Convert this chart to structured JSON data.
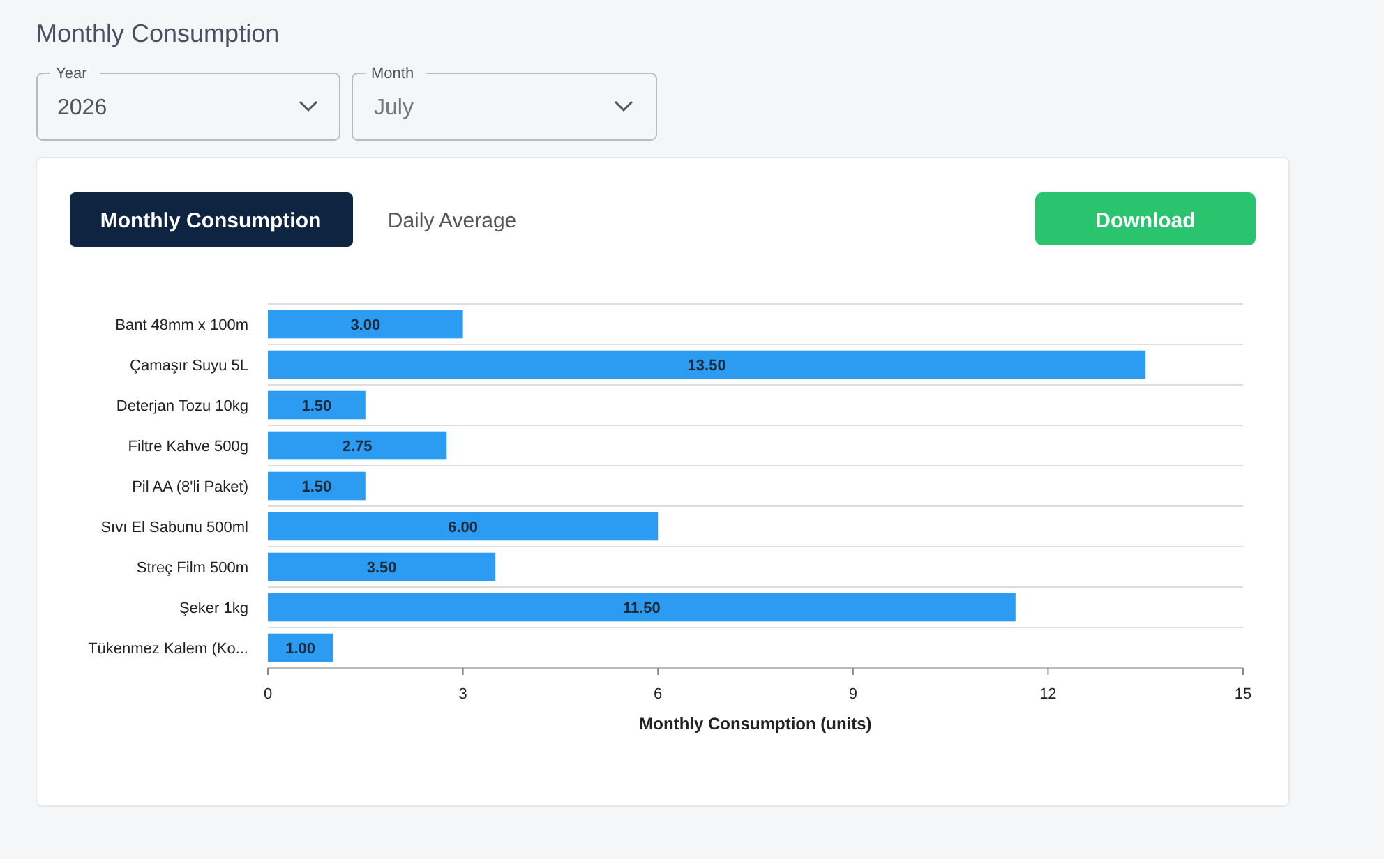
{
  "chart_data": {
    "type": "bar",
    "orientation": "horizontal",
    "title": "Monthly Consumption",
    "xlabel": "Monthly Consumption (units)",
    "categories": [
      "Bant 48mm x 100m",
      "Çamaşır Suyu 5L",
      "Deterjan Tozu 10kg",
      "Filtre Kahve 500g",
      "Pil AA (8'li Paket)",
      "Sıvı El Sabunu 500ml",
      "Streç Film 500m",
      "Şeker 1kg",
      "Tükenmez Kalem (Ko..."
    ],
    "values": [
      3,
      13.5,
      1.5,
      2.75,
      1.5,
      6,
      3.5,
      11.5,
      1
    ],
    "value_labels": [
      "3.00",
      "13.50",
      "1.50",
      "2.75",
      "1.50",
      "6.00",
      "3.50",
      "11.50",
      "1.00"
    ],
    "color": "#2b9cf2",
    "xlim": [
      0,
      15
    ],
    "xticks": [
      0,
      3,
      6,
      9,
      12,
      15
    ],
    "grid": "y",
    "annotations": [
      "Year",
      "2026",
      "Month",
      "July",
      "Monthly Consumption",
      "Daily Average",
      "Download"
    ]
  }
}
